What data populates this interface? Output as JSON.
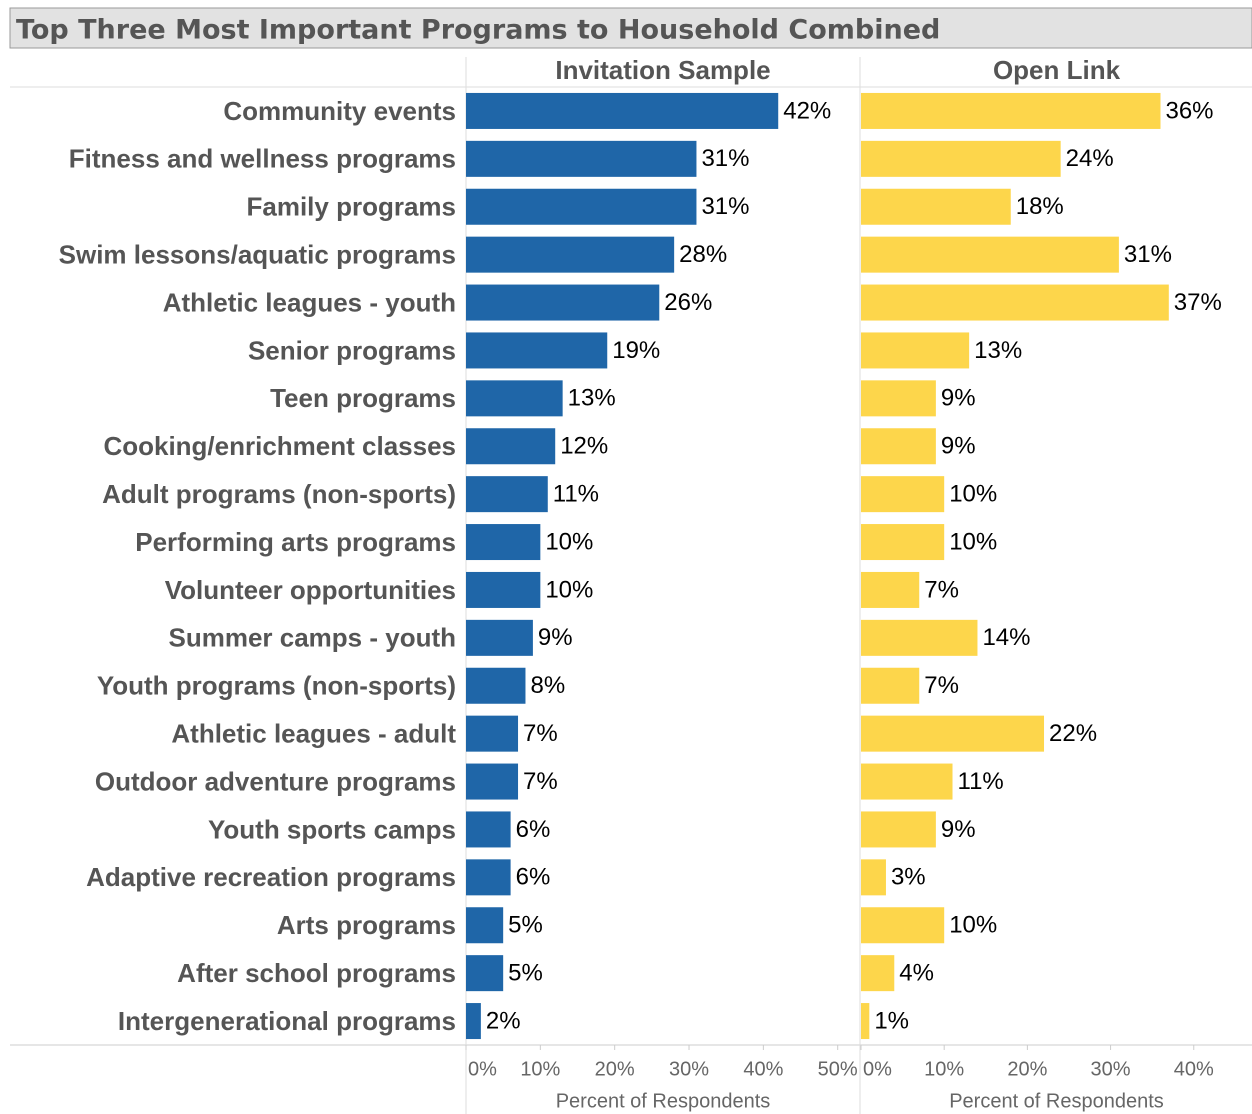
{
  "chart_data": {
    "type": "bar",
    "orientation": "horizontal",
    "title": "Top Three Most Important Programs to Household Combined",
    "categories": [
      "Community events",
      "Fitness and wellness programs",
      "Family programs",
      "Swim lessons/aquatic programs",
      "Athletic leagues - youth",
      "Senior programs",
      "Teen programs",
      "Cooking/enrichment classes",
      "Adult programs (non-sports)",
      "Performing arts programs",
      "Volunteer opportunities",
      "Summer camps - youth",
      "Youth programs (non-sports)",
      "Athletic leagues - adult",
      "Outdoor adventure programs",
      "Youth sports camps",
      "Adaptive recreation programs",
      "Arts programs",
      "After school programs",
      "Intergenerational programs"
    ],
    "series": [
      {
        "name": "Invitation Sample",
        "color": "#1f66a8",
        "values": [
          42,
          31,
          31,
          28,
          26,
          19,
          13,
          12,
          11,
          10,
          10,
          9,
          8,
          7,
          7,
          6,
          6,
          5,
          5,
          2
        ],
        "value_labels": [
          "42%",
          "31%",
          "31%",
          "28%",
          "26%",
          "19%",
          "13%",
          "12%",
          "11%",
          "10%",
          "10%",
          "9%",
          "8%",
          "7%",
          "7%",
          "6%",
          "6%",
          "5%",
          "5%",
          "2%"
        ],
        "xlim": [
          0,
          53
        ],
        "xticks": [
          {
            "value": 0,
            "label": "0%"
          },
          {
            "value": 10,
            "label": "10%"
          },
          {
            "value": 20,
            "label": "20%"
          },
          {
            "value": 30,
            "label": "30%"
          },
          {
            "value": 40,
            "label": "40%"
          },
          {
            "value": 50,
            "label": "50%"
          }
        ],
        "xlabel": "Percent of Respondents"
      },
      {
        "name": "Open Link",
        "color": "#fdd64b",
        "values": [
          36,
          24,
          18,
          31,
          37,
          13,
          9,
          9,
          10,
          10,
          7,
          14,
          7,
          22,
          11,
          9,
          3,
          10,
          4,
          1
        ],
        "value_labels": [
          "36%",
          "24%",
          "18%",
          "31%",
          "37%",
          "13%",
          "9%",
          "9%",
          "10%",
          "10%",
          "7%",
          "14%",
          "7%",
          "22%",
          "11%",
          "9%",
          "3%",
          "10%",
          "4%",
          "1%"
        ],
        "xlim": [
          0,
          47
        ],
        "xticks": [
          {
            "value": 0,
            "label": "0%"
          },
          {
            "value": 10,
            "label": "10%"
          },
          {
            "value": 20,
            "label": "20%"
          },
          {
            "value": 30,
            "label": "30%"
          },
          {
            "value": 40,
            "label": "40%"
          }
        ],
        "xlabel": "Percent of Respondents"
      }
    ]
  }
}
